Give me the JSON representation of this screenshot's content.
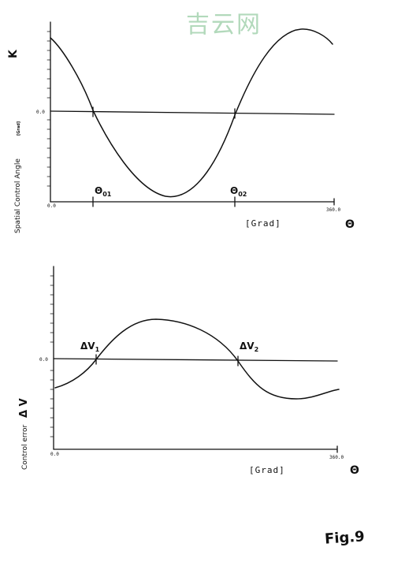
{
  "watermark": "吉云网",
  "figure_label": "Fig.9",
  "top_plot": {
    "y_axis_title": "Spatial Control Angle",
    "y_axis_unit": "[Grad]",
    "y_symbol": "K",
    "zero_label": "0.0",
    "x_start_label": "0.0",
    "x_end_label": "360.0",
    "x_unit": "[Grad]",
    "x_symbol": "Θ",
    "markers": [
      {
        "main": "Θ",
        "sub": "01"
      },
      {
        "main": "Θ",
        "sub": "02"
      }
    ]
  },
  "bottom_plot": {
    "y_axis_title": "Control error",
    "y_symbol": "Δ V",
    "zero_label": "0.0",
    "x_start_label": "0.0",
    "x_end_label": "360.0",
    "x_unit": "[Grad]",
    "x_symbol": "Θ",
    "markers": [
      {
        "main": "ΔV",
        "sub": "1"
      },
      {
        "main": "ΔV",
        "sub": "2"
      }
    ]
  }
}
